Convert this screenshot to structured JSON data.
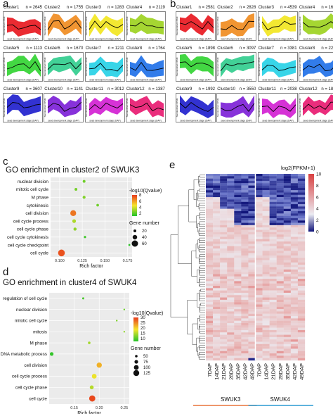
{
  "panels": {
    "a": {
      "label": "a",
      "xlabel": "seed development stage (DAP)",
      "ylabel": "Standardized FPKM",
      "clusters": [
        {
          "name": "Cluster1",
          "n": "n = 2645",
          "color": "#e8141c"
        },
        {
          "name": "Cluster2",
          "n": "n = 1755",
          "color": "#f08a1c"
        },
        {
          "name": "Cluster3",
          "n": "n = 1283",
          "color": "#f2e61c"
        },
        {
          "name": "Cluster4",
          "n": "n = 2119",
          "color": "#9bd21c"
        },
        {
          "name": "Cluster5",
          "n": "n = 1113",
          "color": "#2fd32f"
        },
        {
          "name": "Cluster6",
          "n": "n = 1670",
          "color": "#2dcc8c"
        },
        {
          "name": "Cluster7",
          "n": "n = 1211",
          "color": "#22d0e6"
        },
        {
          "name": "Cluster8",
          "n": "n = 1764",
          "color": "#1c6ee8"
        },
        {
          "name": "Cluster9",
          "n": "n = 3607",
          "color": "#1c1ccc"
        },
        {
          "name": "Cluster10",
          "n": "n = 1141",
          "color": "#7a1cd6"
        },
        {
          "name": "Cluster11",
          "n": "n = 3012",
          "color": "#d21cd2"
        },
        {
          "name": "Cluster12",
          "n": "n = 1387",
          "color": "#e8166e"
        }
      ]
    },
    "b": {
      "label": "b",
      "xlabel": "seed development stage (DAP)",
      "ylabel": "Standardized FPKM",
      "clusters": [
        {
          "name": "Cluster1",
          "n": "n = 2581",
          "color": "#e8141c"
        },
        {
          "name": "Cluster2",
          "n": "n = 2828",
          "color": "#f08a1c"
        },
        {
          "name": "Cluster3",
          "n": "n = 4539",
          "color": "#f2e61c"
        },
        {
          "name": "Cluster4",
          "n": "n = 1676",
          "color": "#9bd21c"
        },
        {
          "name": "Cluster5",
          "n": "n = 1898",
          "color": "#2fd32f"
        },
        {
          "name": "Cluster6",
          "n": "n = 3097",
          "color": "#2dcc8c"
        },
        {
          "name": "Cluster7",
          "n": "n = 3381",
          "color": "#22d0e6"
        },
        {
          "name": "Cluster8",
          "n": "n = 2267",
          "color": "#1c6ee8"
        },
        {
          "name": "Cluster9",
          "n": "n = 1992",
          "color": "#1c1ccc"
        },
        {
          "name": "Cluster10",
          "n": "n = 3550",
          "color": "#7a1cd6"
        },
        {
          "name": "Cluster11",
          "n": "n = 2038",
          "color": "#d21cd2"
        },
        {
          "name": "Cluster12",
          "n": "n = 1875",
          "color": "#e8166e"
        }
      ]
    }
  },
  "chart_data": [
    {
      "panel": "c",
      "type": "scatter",
      "title": "GO enrichment in cluster2 of SWUK3",
      "xlabel": "Rich factor",
      "xticks": [
        "0.100",
        "0.125",
        "0.150",
        "0.175"
      ],
      "xlim": [
        0.09,
        0.18
      ],
      "categories": [
        "nuclear division",
        "mitotic cell cycle",
        "M phase",
        "cytokinesis",
        "cell division",
        "cell cycle process",
        "cell cycle phase",
        "cell cycle cytokinesis",
        "cell cycle checkpoint",
        "cell cycle"
      ],
      "points": [
        {
          "term": "nuclear division",
          "rich": 0.127,
          "q": 2.3,
          "genes": 20
        },
        {
          "term": "mitotic cell cycle",
          "rich": 0.118,
          "q": 2.4,
          "genes": 20
        },
        {
          "term": "M phase",
          "rich": 0.127,
          "q": 2.6,
          "genes": 22
        },
        {
          "term": "cytokinesis",
          "rich": 0.142,
          "q": 2.3,
          "genes": 18
        },
        {
          "term": "cell division",
          "rich": 0.115,
          "q": 6.8,
          "genes": 55
        },
        {
          "term": "cell cycle process",
          "rich": 0.116,
          "q": 3.3,
          "genes": 30
        },
        {
          "term": "cell cycle phase",
          "rich": 0.117,
          "q": 2.8,
          "genes": 24
        },
        {
          "term": "cell cycle cytokinesis",
          "rich": 0.128,
          "q": 1.5,
          "genes": 14
        },
        {
          "term": "cell cycle checkpoint",
          "rich": 0.177,
          "q": 1.2,
          "genes": 10
        },
        {
          "term": "cell cycle",
          "rich": 0.102,
          "q": 7.5,
          "genes": 65
        }
      ],
      "color_legend": {
        "title": "-log10(Qvalue)",
        "ticks": [
          8,
          6,
          4,
          2
        ],
        "min": 1,
        "max": 8,
        "colors": [
          "#22c22a",
          "#f5e52c",
          "#e83a1c"
        ]
      },
      "size_legend": {
        "title": "Gene number",
        "values": [
          20,
          40,
          60
        ]
      }
    },
    {
      "panel": "d",
      "type": "scatter",
      "title": "GO enrichment in cluster4 of SWUK4",
      "xlabel": "Rich factor",
      "xticks": [
        "0.15",
        "0.20",
        "0.25"
      ],
      "xlim": [
        0.1,
        0.26
      ],
      "categories": [
        "regulation of cell cycle",
        "nuclear division",
        "mitotic cell cycle",
        "mitosis",
        "M phase",
        "DNA metabolic process",
        "cell division",
        "cell cycle process",
        "cell cycle phase",
        "cell cycle"
      ],
      "points": [
        {
          "term": "regulation of cell cycle",
          "rich": 0.168,
          "q": 9,
          "genes": 40
        },
        {
          "term": "nuclear division",
          "rich": 0.25,
          "q": 11,
          "genes": 30
        },
        {
          "term": "mitotic cell cycle",
          "rich": 0.235,
          "q": 12,
          "genes": 32
        },
        {
          "term": "mitosis",
          "rich": 0.25,
          "q": 13,
          "genes": 30
        },
        {
          "term": "M phase",
          "rich": 0.18,
          "q": 14,
          "genes": 50
        },
        {
          "term": "DNA metabolic process",
          "rich": 0.105,
          "q": 8,
          "genes": 75
        },
        {
          "term": "cell division",
          "rich": 0.2,
          "q": 22,
          "genes": 110
        },
        {
          "term": "cell cycle process",
          "rich": 0.19,
          "q": 18,
          "genes": 100
        },
        {
          "term": "cell cycle phase",
          "rich": 0.185,
          "q": 15,
          "genes": 80
        },
        {
          "term": "cell cycle",
          "rich": 0.186,
          "q": 29,
          "genes": 130
        }
      ],
      "color_legend": {
        "title": "-log10(Qvalue)",
        "ticks": [
          30,
          25,
          20,
          15,
          10
        ],
        "min": 7,
        "max": 30,
        "colors": [
          "#22c22a",
          "#f5e52c",
          "#e83a1c"
        ]
      },
      "size_legend": {
        "title": "Gene number",
        "values": [
          50,
          75,
          100,
          125
        ]
      }
    },
    {
      "panel": "e",
      "type": "heatmap",
      "legend_title": "log2(FPKM+1)",
      "legend_ticks": [
        "10",
        "8",
        "6",
        "4",
        "2",
        "0"
      ],
      "columns": [
        "7DAP",
        "14DAP",
        "21DAP",
        "28DAP",
        "35DAP",
        "42DAP",
        "49DAP",
        "7DAP",
        "14DAP",
        "21DAP",
        "28DAP",
        "35DAP",
        "42DAP",
        "49DAP"
      ],
      "groups": [
        {
          "name": "SWUK3",
          "color": "#e8733a"
        },
        {
          "name": "SWUK4",
          "color": "#2a9ad2"
        }
      ]
    }
  ]
}
